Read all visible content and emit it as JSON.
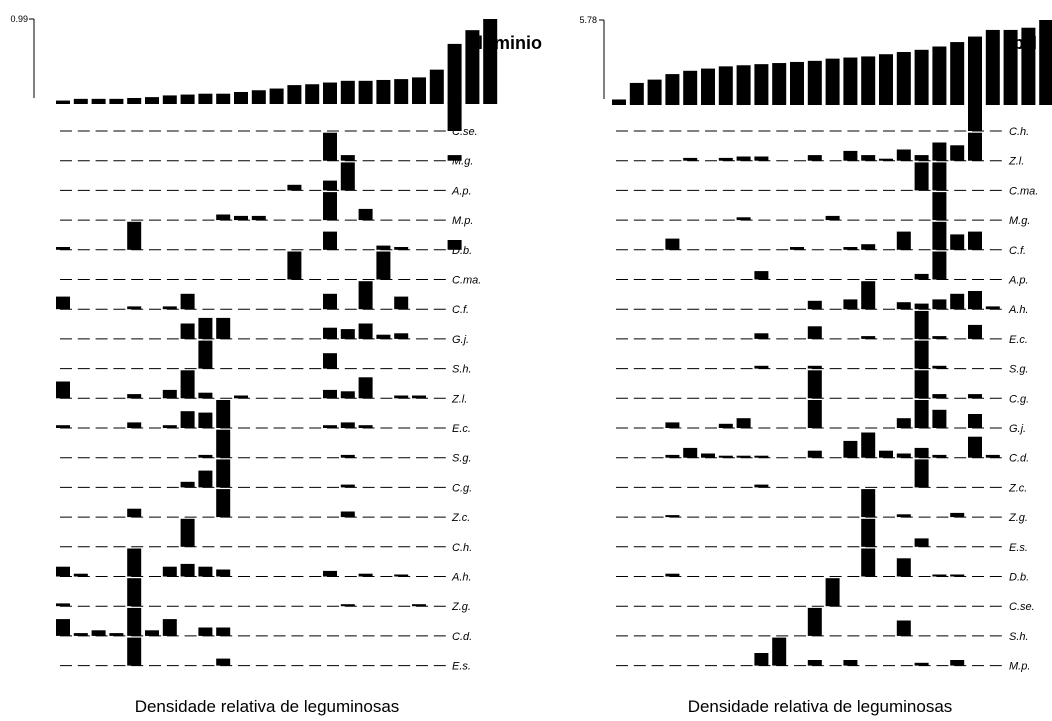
{
  "chart_data": [
    {
      "type": "bar",
      "gradient": {
        "label": "Aluminio",
        "max_label": "0.99",
        "values": [
          0.04,
          0.06,
          0.06,
          0.06,
          0.07,
          0.08,
          0.1,
          0.11,
          0.12,
          0.12,
          0.14,
          0.16,
          0.18,
          0.22,
          0.23,
          0.25,
          0.27,
          0.27,
          0.28,
          0.29,
          0.31,
          0.4,
          0.7,
          0.86,
          0.99
        ]
      },
      "species": [
        {
          "name": "C.se.",
          "values": [
            0,
            0,
            0,
            0,
            0,
            0,
            0,
            0,
            0,
            0,
            0,
            0,
            0,
            0,
            0,
            0,
            0,
            0,
            0,
            0,
            0,
            0,
            1,
            0,
            0
          ]
        },
        {
          "name": "M.g.",
          "values": [
            0,
            0,
            0,
            0,
            0,
            0,
            0,
            0,
            0,
            0,
            0,
            0,
            0,
            0,
            0,
            1,
            0.2,
            0,
            0,
            0,
            0,
            0,
            0.2,
            0,
            0
          ]
        },
        {
          "name": "A.p.",
          "values": [
            0,
            0,
            0,
            0,
            0,
            0,
            0,
            0,
            0,
            0,
            0,
            0,
            0,
            0.2,
            0,
            0.35,
            1,
            0,
            0,
            0,
            0,
            0,
            0,
            0,
            0
          ]
        },
        {
          "name": "M.p.",
          "values": [
            0,
            0,
            0,
            0,
            0,
            0,
            0,
            0,
            0,
            0.2,
            0.15,
            0.15,
            0,
            0,
            0,
            1,
            0,
            0.4,
            0,
            0,
            0,
            0,
            0,
            0,
            0
          ]
        },
        {
          "name": "D.b.",
          "values": [
            0.1,
            0,
            0,
            0,
            1,
            0,
            0,
            0,
            0,
            0,
            0,
            0,
            0,
            0,
            0,
            0.65,
            0,
            0,
            0.15,
            0.1,
            0,
            0,
            0.35,
            0,
            0
          ]
        },
        {
          "name": "C.ma.",
          "values": [
            0,
            0,
            0,
            0,
            0,
            0,
            0,
            0,
            0,
            0,
            0,
            0,
            0,
            1,
            0,
            0,
            0,
            0,
            1,
            0,
            0,
            0,
            0,
            0,
            0
          ]
        },
        {
          "name": "C.f.",
          "values": [
            0.45,
            0,
            0,
            0,
            0.1,
            0,
            0.1,
            0.55,
            0,
            0,
            0,
            0,
            0,
            0,
            0,
            0.55,
            0,
            1,
            0,
            0.45,
            0,
            0,
            0,
            0,
            0
          ]
        },
        {
          "name": "G.j.",
          "values": [
            0,
            0,
            0,
            0,
            0,
            0,
            0,
            0.55,
            0.75,
            0.75,
            0,
            0,
            0,
            0,
            0,
            0.4,
            0.35,
            0.55,
            0.15,
            0.2,
            0,
            0,
            0,
            0,
            0
          ]
        },
        {
          "name": "S.h.",
          "values": [
            0,
            0,
            0,
            0,
            0,
            0,
            0,
            0,
            1,
            0,
            0,
            0,
            0,
            0,
            0,
            0.55,
            0,
            0,
            0,
            0,
            0,
            0,
            0,
            0,
            0
          ]
        },
        {
          "name": "Z.l.",
          "values": [
            0.6,
            0,
            0,
            0,
            0.15,
            0,
            0.3,
            1,
            0.2,
            0,
            0.1,
            0,
            0,
            0,
            0,
            0.3,
            0.25,
            0.75,
            0,
            0.1,
            0.1,
            0,
            0,
            0,
            0
          ]
        },
        {
          "name": "E.c.",
          "values": [
            0.1,
            0,
            0,
            0,
            0.2,
            0,
            0.1,
            0.6,
            0.55,
            1,
            0,
            0,
            0,
            0,
            0,
            0.1,
            0.2,
            0.1,
            0,
            0,
            0,
            0,
            0,
            0,
            0
          ]
        },
        {
          "name": "S.g.",
          "values": [
            0,
            0,
            0,
            0,
            0,
            0,
            0,
            0,
            0.1,
            1,
            0,
            0,
            0,
            0,
            0,
            0,
            0.1,
            0,
            0,
            0,
            0,
            0,
            0,
            0,
            0
          ]
        },
        {
          "name": "C.g.",
          "values": [
            0,
            0,
            0,
            0,
            0,
            0,
            0,
            0.2,
            0.6,
            1,
            0,
            0,
            0,
            0,
            0,
            0,
            0.1,
            0,
            0,
            0,
            0,
            0,
            0,
            0,
            0
          ]
        },
        {
          "name": "Z.c.",
          "values": [
            0,
            0,
            0,
            0,
            0.3,
            0,
            0,
            0,
            0,
            1,
            0,
            0,
            0,
            0,
            0,
            0,
            0.2,
            0,
            0,
            0,
            0,
            0,
            0,
            0,
            0
          ]
        },
        {
          "name": "C.h.",
          "values": [
            0,
            0,
            0,
            0,
            0,
            0,
            0,
            1,
            0,
            0,
            0,
            0,
            0,
            0,
            0,
            0,
            0,
            0,
            0,
            0,
            0,
            0,
            0,
            0,
            0
          ]
        },
        {
          "name": "A.h.",
          "values": [
            0.35,
            0.1,
            0,
            0,
            1,
            0,
            0.35,
            0.45,
            0.35,
            0.25,
            0,
            0,
            0,
            0,
            0,
            0.2,
            0,
            0.1,
            0,
            0.05,
            0,
            0,
            0,
            0,
            0
          ]
        },
        {
          "name": "Z.g.",
          "values": [
            0.1,
            0,
            0,
            0,
            1,
            0,
            0,
            0,
            0,
            0,
            0,
            0,
            0,
            0,
            0,
            0,
            0.05,
            0,
            0,
            0,
            0.05,
            0,
            0,
            0,
            0
          ]
        },
        {
          "name": "C.d.",
          "values": [
            0.6,
            0.1,
            0.2,
            0.1,
            1,
            0.2,
            0.6,
            0,
            0.3,
            0.3,
            0,
            0,
            0,
            0,
            0,
            0,
            0,
            0,
            0,
            0,
            0,
            0,
            0,
            0,
            0
          ]
        },
        {
          "name": "E.s.",
          "values": [
            0,
            0,
            0,
            0,
            1,
            0,
            0,
            0,
            0,
            0.25,
            0,
            0,
            0,
            0,
            0,
            0,
            0,
            0,
            0,
            0,
            0,
            0,
            0,
            0,
            0
          ]
        }
      ],
      "xlabel": "Densidade relativa de leguminosas"
    },
    {
      "type": "bar",
      "gradient": {
        "label": "pH",
        "max_label": "5.78",
        "values": [
          0.05,
          0.2,
          0.23,
          0.28,
          0.31,
          0.33,
          0.35,
          0.36,
          0.37,
          0.38,
          0.39,
          0.4,
          0.42,
          0.43,
          0.44,
          0.46,
          0.48,
          0.5,
          0.53,
          0.57,
          0.62,
          0.68,
          0.68,
          0.7,
          0.77
        ]
      },
      "species": [
        {
          "name": "C.h.",
          "values": [
            0,
            0,
            0,
            0,
            0,
            0,
            0,
            0,
            0,
            0,
            0,
            0,
            0,
            0,
            0,
            0,
            0,
            0,
            0,
            0,
            1,
            0,
            0,
            0,
            0
          ]
        },
        {
          "name": "Z.l.",
          "values": [
            0,
            0,
            0,
            0,
            0.1,
            0,
            0.1,
            0.15,
            0.15,
            0,
            0,
            0.2,
            0,
            0.35,
            0.2,
            0.05,
            0.4,
            0.2,
            0.65,
            0.55,
            1,
            0,
            0,
            0,
            0
          ]
        },
        {
          "name": "C.ma.",
          "values": [
            0,
            0,
            0,
            0,
            0,
            0,
            0,
            0,
            0,
            0,
            0,
            0,
            0,
            0,
            0,
            0,
            0,
            1,
            1,
            0,
            0,
            0,
            0,
            0,
            0
          ]
        },
        {
          "name": "M.g.",
          "values": [
            0,
            0,
            0,
            0,
            0,
            0,
            0,
            0.1,
            0,
            0,
            0,
            0,
            0.15,
            0,
            0,
            0,
            0,
            0,
            1,
            0,
            0,
            0,
            0,
            0,
            0
          ]
        },
        {
          "name": "C.f.",
          "values": [
            0,
            0,
            0,
            0.4,
            0,
            0,
            0,
            0,
            0,
            0,
            0.1,
            0,
            0,
            0.1,
            0.2,
            0,
            0.65,
            0,
            1,
            0.55,
            0.65,
            0,
            0,
            0,
            0
          ]
        },
        {
          "name": "A.p.",
          "values": [
            0,
            0,
            0,
            0,
            0,
            0,
            0,
            0,
            0.3,
            0,
            0,
            0,
            0,
            0,
            0,
            0,
            0,
            0.2,
            1,
            0,
            0,
            0,
            0,
            0,
            0
          ]
        },
        {
          "name": "A.h.",
          "values": [
            0,
            0,
            0,
            0,
            0,
            0,
            0,
            0,
            0,
            0,
            0,
            0.3,
            0,
            0.35,
            1,
            0,
            0.25,
            0.2,
            0.35,
            0.55,
            0.65,
            0.1,
            0,
            0,
            0
          ]
        },
        {
          "name": "E.c.",
          "values": [
            0,
            0,
            0,
            0,
            0,
            0,
            0,
            0,
            0.2,
            0,
            0,
            0.45,
            0,
            0,
            0.1,
            0,
            0,
            1,
            0.1,
            0,
            0.5,
            0,
            0,
            0,
            0
          ]
        },
        {
          "name": "S.g.",
          "values": [
            0,
            0,
            0,
            0,
            0,
            0,
            0,
            0,
            0.1,
            0,
            0,
            0.1,
            0,
            0,
            0,
            0,
            0,
            1,
            0.1,
            0,
            0,
            0,
            0,
            0,
            0
          ]
        },
        {
          "name": "C.g.",
          "values": [
            0,
            0,
            0,
            0,
            0,
            0,
            0,
            0,
            0,
            0,
            0,
            1,
            0,
            0,
            0,
            0,
            0,
            1,
            0.15,
            0,
            0.15,
            0,
            0,
            0,
            0
          ]
        },
        {
          "name": "G.j.",
          "values": [
            0,
            0,
            0,
            0.2,
            0,
            0,
            0.15,
            0.35,
            0,
            0,
            0,
            1,
            0,
            0,
            0,
            0,
            0.35,
            1,
            0.65,
            0,
            0.5,
            0,
            0,
            0,
            0
          ]
        },
        {
          "name": "C.d.",
          "values": [
            0,
            0,
            0,
            0.1,
            0.35,
            0.15,
            0.05,
            0.05,
            0.05,
            0,
            0,
            0.25,
            0,
            0.6,
            0.9,
            0.25,
            0.15,
            0.35,
            0.1,
            0,
            0.75,
            0.1,
            0,
            0,
            0
          ]
        },
        {
          "name": "Z.c.",
          "values": [
            0,
            0,
            0,
            0,
            0,
            0,
            0,
            0,
            0.1,
            0,
            0,
            0,
            0,
            0,
            0,
            0,
            0,
            1,
            0,
            0,
            0,
            0,
            0,
            0,
            0
          ]
        },
        {
          "name": "Z.g.",
          "values": [
            0,
            0,
            0,
            0.05,
            0,
            0,
            0,
            0,
            0,
            0,
            0,
            0,
            0,
            0,
            1,
            0,
            0.1,
            0,
            0,
            0.15,
            0,
            0,
            0,
            0,
            0
          ]
        },
        {
          "name": "E.s.",
          "values": [
            0,
            0,
            0,
            0,
            0,
            0,
            0,
            0,
            0,
            0,
            0,
            0,
            0,
            0,
            1,
            0,
            0,
            0.3,
            0,
            0,
            0,
            0,
            0,
            0,
            0
          ]
        },
        {
          "name": "D.b.",
          "values": [
            0,
            0,
            0,
            0.1,
            0,
            0,
            0,
            0,
            0,
            0,
            0,
            0,
            0,
            0,
            1,
            0,
            0.65,
            0,
            0.05,
            0.05,
            0,
            0,
            0,
            0,
            0
          ]
        },
        {
          "name": "C.se.",
          "values": [
            0,
            0,
            0,
            0,
            0,
            0,
            0,
            0,
            0,
            0,
            0,
            0,
            1,
            0,
            0,
            0,
            0,
            0,
            0,
            0,
            0,
            0,
            0,
            0,
            0
          ]
        },
        {
          "name": "S.h.",
          "values": [
            0,
            0,
            0,
            0,
            0,
            0,
            0,
            0,
            0,
            0,
            0,
            1,
            0,
            0,
            0,
            0,
            0.55,
            0,
            0,
            0,
            0,
            0,
            0,
            0,
            0
          ]
        },
        {
          "name": "M.p.",
          "values": [
            0,
            0,
            0,
            0,
            0,
            0,
            0,
            0,
            0.45,
            1,
            0,
            0.2,
            0,
            0.2,
            0,
            0,
            0,
            0.1,
            0,
            0.2,
            0,
            0,
            0,
            0,
            0
          ]
        }
      ],
      "xlabel": "Densidade relativa de leguminosas"
    }
  ]
}
